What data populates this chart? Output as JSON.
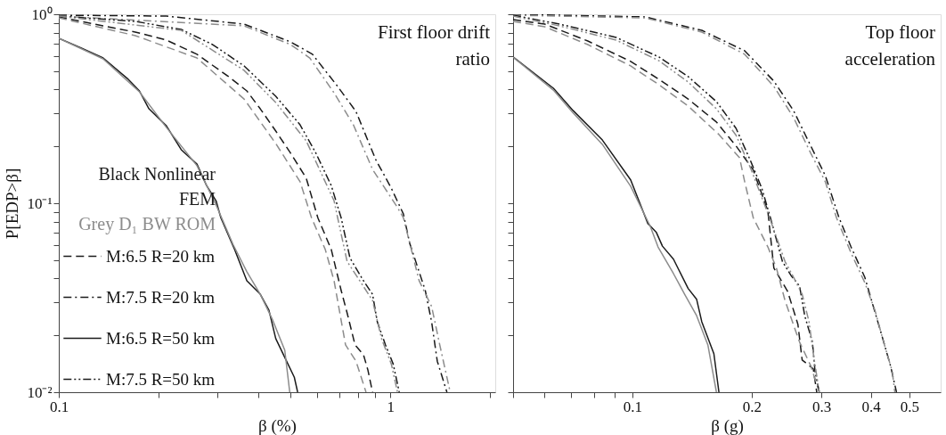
{
  "chart_data": [
    {
      "type": "line",
      "title": "First floor drift ratio",
      "xlabel": "β (%)",
      "ylabel": "P[EDP>β]",
      "log": "xy",
      "grid": false,
      "legend": "bottom left",
      "annotations": [
        "Black Nonlinear FEM",
        "Grey D₁ BW ROM"
      ],
      "xlim": [
        0.1,
        2.07
      ],
      "ylim": [
        0.01,
        1
      ],
      "xticks": [
        0.1,
        {
          "value": 0.2,
          "label": null
        },
        {
          "value": 0.3,
          "label": null
        },
        {
          "value": 0.4,
          "label": null
        },
        {
          "value": 0.5,
          "label": null
        },
        {
          "value": 0.6,
          "label": null
        },
        {
          "value": 0.7,
          "label": null
        },
        {
          "value": 0.8,
          "label": null
        },
        {
          "value": 0.9,
          "label": null
        },
        1,
        {
          "value": 2,
          "label": null
        }
      ],
      "yticks": [
        {
          "value": 0.01,
          "label": "10⁻²"
        },
        {
          "value": 0.02,
          "label": null
        },
        {
          "value": 0.03,
          "label": null
        },
        {
          "value": 0.04,
          "label": null
        },
        {
          "value": 0.05,
          "label": null
        },
        {
          "value": 0.06,
          "label": null
        },
        {
          "value": 0.07,
          "label": null
        },
        {
          "value": 0.08,
          "label": null
        },
        {
          "value": 0.09,
          "label": null
        },
        {
          "value": 0.1,
          "label": "10⁻¹"
        },
        {
          "value": 0.2,
          "label": null
        },
        {
          "value": 0.3,
          "label": null
        },
        {
          "value": 0.4,
          "label": null
        },
        {
          "value": 0.5,
          "label": null
        },
        {
          "value": 0.6,
          "label": null
        },
        {
          "value": 0.7,
          "label": null
        },
        {
          "value": 0.8,
          "label": null
        },
        {
          "value": 0.9,
          "label": null
        },
        {
          "value": 1,
          "label": "10⁰"
        }
      ],
      "series": [
        {
          "name": "M:6.5 R=20 km",
          "color": "#1a1a1a",
          "line_style": "dashed",
          "x": [
            0.1,
            0.136,
            0.17,
            0.211,
            0.261,
            0.325,
            0.369,
            0.405,
            0.451,
            0.5,
            0.557,
            0.604,
            0.663,
            0.71,
            0.74,
            0.782,
            0.829,
            0.855,
            0.883
          ],
          "values": [
            0.968,
            0.868,
            0.805,
            0.73,
            0.614,
            0.468,
            0.393,
            0.316,
            0.241,
            0.184,
            0.136,
            0.0838,
            0.0569,
            0.0346,
            0.0263,
            0.0178,
            0.0158,
            0.0131,
            0.01
          ]
        },
        {
          "color": "#8c8c8c",
          "line_style": "dashed",
          "x": [
            0.1,
            0.17,
            0.261,
            0.362,
            0.451,
            0.534,
            0.578,
            0.636,
            0.676,
            0.732,
            0.787,
            0.844
          ],
          "values": [
            0.957,
            0.771,
            0.587,
            0.356,
            0.207,
            0.13,
            0.0838,
            0.0569,
            0.0389,
            0.0178,
            0.0146,
            0.01
          ]
        },
        {
          "name": "M:7.5 R=20 km",
          "color": "#1a1a1a",
          "line_style": "dashdot",
          "x": [
            0.1,
            0.211,
            0.362,
            0.5,
            0.582,
            0.693,
            0.787,
            0.903,
            1.006,
            1.094,
            1.143,
            1.273,
            1.331,
            1.384,
            1.48
          ],
          "values": [
            0.989,
            0.978,
            0.887,
            0.714,
            0.614,
            0.415,
            0.306,
            0.17,
            0.12,
            0.0877,
            0.0614,
            0.0346,
            0.0235,
            0.0146,
            0.01
          ]
        },
        {
          "color": "#8c8c8c",
          "line_style": "dashdot",
          "x": [
            0.1,
            0.362,
            0.5,
            0.571,
            0.676,
            0.773,
            0.883,
            1.05,
            1.094,
            1.22,
            1.331,
            1.408,
            1.514
          ],
          "values": [
            0.978,
            0.868,
            0.691,
            0.587,
            0.384,
            0.26,
            0.151,
            0.095,
            0.0838,
            0.0389,
            0.0284,
            0.0178,
            0.01
          ]
        },
        {
          "name": "M:6.5 R=50 km",
          "color": "#1a1a1a",
          "line_style": "solid",
          "x": [
            0.1,
            0.117,
            0.136,
            0.161,
            0.175,
            0.187,
            0.211,
            0.234,
            0.261,
            0.279,
            0.298,
            0.308,
            0.339,
            0.369,
            0.405,
            0.43,
            0.451,
            0.48,
            0.513,
            0.525
          ],
          "values": [
            0.746,
            0.662,
            0.587,
            0.457,
            0.393,
            0.316,
            0.257,
            0.192,
            0.161,
            0.124,
            0.103,
            0.0838,
            0.0569,
            0.0389,
            0.033,
            0.0272,
            0.0192,
            0.0153,
            0.012,
            0.01
          ]
        },
        {
          "color": "#8c8c8c",
          "line_style": "solid",
          "x": [
            0.1,
            0.136,
            0.175,
            0.211,
            0.261,
            0.298,
            0.335,
            0.369,
            0.405,
            0.44,
            0.48,
            0.497
          ],
          "values": [
            0.746,
            0.581,
            0.389,
            0.252,
            0.158,
            0.098,
            0.0607,
            0.0434,
            0.033,
            0.0244,
            0.0167,
            0.01
          ]
        },
        {
          "name": "M:7.5 R=50 km",
          "color": "#1a1a1a",
          "line_style": "dashdotdot",
          "x": [
            0.1,
            0.17,
            0.234,
            0.291,
            0.362,
            0.451,
            0.534,
            0.596,
            0.663,
            0.71,
            0.755,
            0.829,
            0.883,
            0.913,
            0.966,
            1.019,
            1.063
          ],
          "values": [
            0.978,
            0.917,
            0.831,
            0.691,
            0.533,
            0.368,
            0.26,
            0.184,
            0.124,
            0.0838,
            0.0513,
            0.0389,
            0.033,
            0.0235,
            0.0178,
            0.0141,
            0.01
          ]
        },
        {
          "color": "#8c8c8c",
          "line_style": "dashdotdot",
          "x": [
            0.1,
            0.234,
            0.362,
            0.451,
            0.557,
            0.676,
            0.693,
            0.74,
            0.808,
            0.883,
            0.94,
            1.006,
            1.05
          ],
          "values": [
            0.978,
            0.822,
            0.505,
            0.341,
            0.214,
            0.103,
            0.0838,
            0.0492,
            0.0389,
            0.0306,
            0.0192,
            0.0141,
            0.01
          ]
        }
      ]
    },
    {
      "type": "line",
      "title": "Top floor acceleration",
      "xlabel": "β (g)",
      "log": "xy",
      "grid": false,
      "tick_labels": "x",
      "xlim": [
        0.05,
        0.6
      ],
      "ylim": [
        0.01,
        1
      ],
      "xticks": [
        {
          "value": 0.05,
          "label": null
        },
        {
          "value": 0.06,
          "label": null
        },
        {
          "value": 0.07,
          "label": null
        },
        {
          "value": 0.08,
          "label": null
        },
        {
          "value": 0.09,
          "label": null
        },
        0.1,
        0.2,
        0.3,
        0.4,
        0.5
      ],
      "yticks": [
        {
          "value": 0.01,
          "label": null
        },
        {
          "value": 0.02,
          "label": null
        },
        {
          "value": 0.03,
          "label": null
        },
        {
          "value": 0.04,
          "label": null
        },
        {
          "value": 0.05,
          "label": null
        },
        {
          "value": 0.06,
          "label": null
        },
        {
          "value": 0.07,
          "label": null
        },
        {
          "value": 0.08,
          "label": null
        },
        {
          "value": 0.09,
          "label": null
        },
        {
          "value": 0.1,
          "label": null
        },
        {
          "value": 0.2,
          "label": null
        },
        {
          "value": 0.3,
          "label": null
        },
        {
          "value": 0.4,
          "label": null
        },
        {
          "value": 0.5,
          "label": null
        },
        {
          "value": 0.6,
          "label": null
        },
        {
          "value": 0.7,
          "label": null
        },
        {
          "value": 0.8,
          "label": null
        },
        {
          "value": 0.9,
          "label": null
        },
        {
          "value": 1,
          "label": null
        }
      ],
      "series": [
        {
          "color": "#1a1a1a",
          "line_style": "dashed",
          "x": [
            0.05,
            0.0601,
            0.0772,
            0.099,
            0.1167,
            0.1383,
            0.163,
            0.1827,
            0.2019,
            0.2198,
            0.2276,
            0.2465,
            0.2617,
            0.2683,
            0.2862,
            0.292
          ],
          "values": [
            0.937,
            0.887,
            0.722,
            0.563,
            0.453,
            0.356,
            0.269,
            0.201,
            0.15,
            0.0908,
            0.0454,
            0.0342,
            0.0229,
            0.0148,
            0.0133,
            0.01
          ]
        },
        {
          "color": "#8c8c8c",
          "line_style": "dashed",
          "x": [
            0.05,
            0.0601,
            0.0772,
            0.099,
            0.1167,
            0.1383,
            0.1654,
            0.1865,
            0.1921,
            0.2019,
            0.2198,
            0.231,
            0.2428,
            0.2643,
            0.282,
            0.2964
          ],
          "values": [
            0.917,
            0.859,
            0.691,
            0.533,
            0.424,
            0.327,
            0.231,
            0.174,
            0.13,
            0.0838,
            0.0587,
            0.0454,
            0.0306,
            0.0184,
            0.0138,
            0.01
          ]
        },
        {
          "color": "#1a1a1a",
          "line_style": "dashdot",
          "x": [
            0.05,
            0.1078,
            0.1497,
            0.1921,
            0.2276,
            0.2552,
            0.282,
            0.3069,
            0.3324,
            0.3564,
            0.3861,
            0.4057,
            0.4265,
            0.4483,
            0.4642
          ],
          "values": [
            1.0,
            0.968,
            0.822,
            0.641,
            0.443,
            0.309,
            0.201,
            0.14,
            0.0838,
            0.0587,
            0.0406,
            0.0284,
            0.0199,
            0.0138,
            0.01
          ]
        },
        {
          "color": "#8c8c8c",
          "line_style": "dashdot",
          "x": [
            0.05,
            0.1078,
            0.1497,
            0.1921,
            0.2276,
            0.2552,
            0.282,
            0.3069,
            0.3275,
            0.3564,
            0.3861,
            0.4098,
            0.4308,
            0.4528,
            0.4597
          ],
          "values": [
            0.989,
            0.957,
            0.805,
            0.614,
            0.415,
            0.284,
            0.184,
            0.13,
            0.0838,
            0.0546,
            0.038,
            0.027,
            0.0184,
            0.0129,
            0.01
          ]
        },
        {
          "color": "#1a1a1a",
          "line_style": "solid",
          "x": [
            0.05,
            0.0632,
            0.0709,
            0.084,
            0.099,
            0.1094,
            0.115,
            0.1191,
            0.127,
            0.1383,
            0.1453,
            0.1497,
            0.1606,
            0.1654
          ],
          "values": [
            0.594,
            0.406,
            0.309,
            0.216,
            0.133,
            0.0782,
            0.07,
            0.0593,
            0.0506,
            0.0354,
            0.031,
            0.0236,
            0.016,
            0.01
          ]
        },
        {
          "color": "#8c8c8c",
          "line_style": "solid",
          "x": [
            0.05,
            0.0632,
            0.0709,
            0.084,
            0.099,
            0.111,
            0.1161,
            0.127,
            0.1355,
            0.1453,
            0.1551,
            0.163
          ],
          "values": [
            0.594,
            0.397,
            0.3,
            0.205,
            0.123,
            0.0754,
            0.0587,
            0.0424,
            0.033,
            0.0254,
            0.0178,
            0.01
          ]
        },
        {
          "color": "#1a1a1a",
          "line_style": "dashdotdot",
          "x": [
            0.05,
            0.0655,
            0.091,
            0.1167,
            0.1383,
            0.163,
            0.1827,
            0.1989,
            0.2122,
            0.2231,
            0.2392,
            0.2514,
            0.2643,
            0.2723,
            0.2848,
            0.2891,
            0.2964
          ],
          "values": [
            0.989,
            0.887,
            0.754,
            0.594,
            0.468,
            0.345,
            0.249,
            0.167,
            0.12,
            0.0838,
            0.0492,
            0.0415,
            0.0364,
            0.0254,
            0.0184,
            0.0129,
            0.01
          ]
        },
        {
          "color": "#8c8c8c",
          "line_style": "dashdotdot",
          "x": [
            0.05,
            0.0655,
            0.091,
            0.1167,
            0.1383,
            0.163,
            0.1827,
            0.1989,
            0.222,
            0.2428,
            0.2552,
            0.2683,
            0.2792,
            0.2862,
            0.2964
          ],
          "values": [
            0.978,
            0.868,
            0.73,
            0.568,
            0.438,
            0.316,
            0.229,
            0.153,
            0.0838,
            0.0492,
            0.0406,
            0.033,
            0.0236,
            0.016,
            0.01
          ]
        }
      ]
    }
  ]
}
